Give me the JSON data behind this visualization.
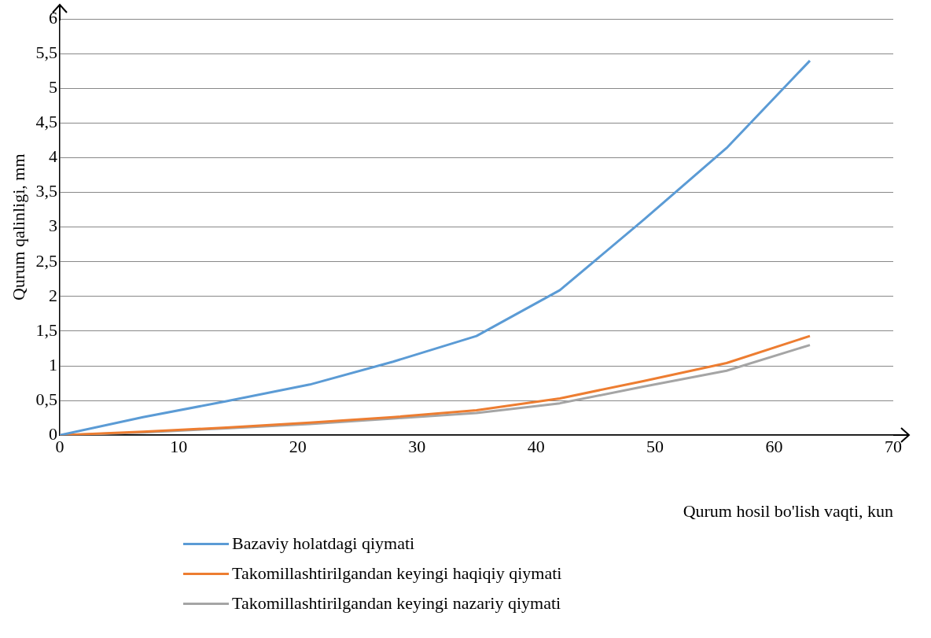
{
  "chart_data": {
    "type": "line",
    "xlabel": "Qurum hosil bo'lish vaqti, kun",
    "ylabel": "Qurum qalinligi, mm",
    "x": [
      0,
      7,
      14,
      21,
      28,
      35,
      42,
      49,
      56,
      63
    ],
    "series": [
      {
        "name": "Bazaviy holatdagi qiymati",
        "color": "#5b9bd5",
        "values": [
          0,
          0.26,
          0.49,
          0.73,
          1.06,
          1.43,
          2.09,
          3.1,
          4.14,
          5.4
        ]
      },
      {
        "name": "Takomillashtirilgandan keyingi haqiqiy qiymati",
        "color": "#ed7d31",
        "values": [
          0,
          0.05,
          0.11,
          0.18,
          0.26,
          0.36,
          0.53,
          0.78,
          1.04,
          1.43
        ]
      },
      {
        "name": "Takomillashtirilgandan keyingi nazariy qiymati",
        "color": "#a5a5a5",
        "values": [
          0,
          0.04,
          0.1,
          0.16,
          0.24,
          0.32,
          0.46,
          0.7,
          0.93,
          1.3
        ]
      }
    ],
    "xlim": [
      0,
      70
    ],
    "xticks": [
      0,
      10,
      20,
      30,
      40,
      50,
      60,
      70
    ],
    "ylim": [
      0,
      6
    ],
    "yticks": [
      0,
      {
        "value": 0.5,
        "label": "0,5"
      },
      1,
      {
        "value": 1.5,
        "label": "1,5"
      },
      2,
      {
        "value": 2.5,
        "label": "2,5"
      },
      3,
      {
        "value": 3.5,
        "label": "3,5"
      },
      4,
      {
        "value": 4.5,
        "label": "4,5"
      },
      5,
      {
        "value": 5.5,
        "label": "5,5"
      },
      6
    ],
    "grid": "y",
    "legend": "bottom",
    "marker": "none",
    "line_style": "solid"
  }
}
